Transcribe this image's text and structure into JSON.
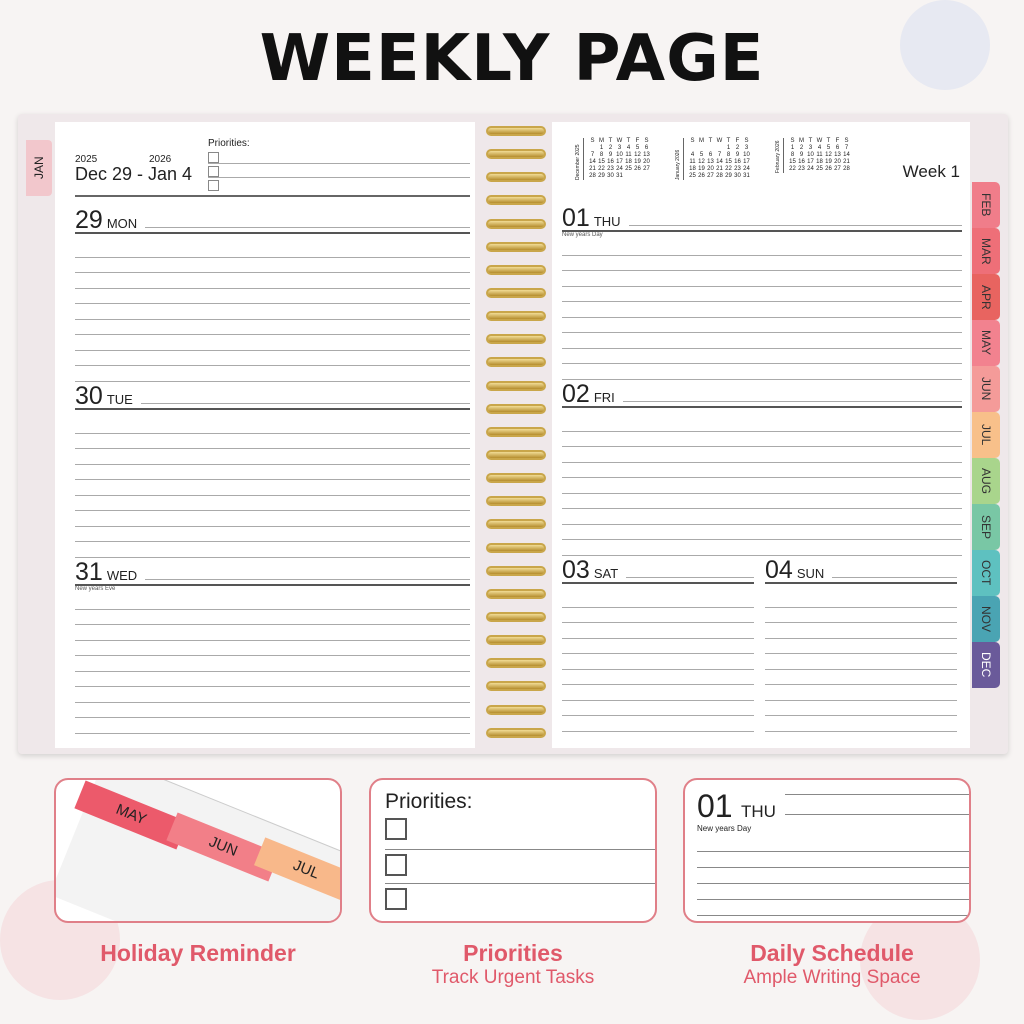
{
  "title": "WEEKLY PAGE",
  "left_page": {
    "tab": "JAN",
    "year_start": "2025",
    "year_end": "2026",
    "range": "Dec 29 - Jan 4",
    "priorities_label": "Priorities:",
    "days": [
      {
        "num": "29",
        "name": "MON",
        "holiday": ""
      },
      {
        "num": "30",
        "name": "TUE",
        "holiday": ""
      },
      {
        "num": "31",
        "name": "WED",
        "holiday": "New years Eve"
      }
    ]
  },
  "right_page": {
    "week": "Week 1",
    "calendars": [
      {
        "month": "December 2025",
        "first_weekday": 1,
        "days": 31
      },
      {
        "month": "January 2026",
        "first_weekday": 4,
        "days": 31
      },
      {
        "month": "February 2026",
        "first_weekday": 0,
        "days": 28
      }
    ],
    "weekday_letters": [
      "S",
      "M",
      "T",
      "W",
      "T",
      "F",
      "S"
    ],
    "days": [
      {
        "num": "01",
        "name": "THU",
        "holiday": "New years Day"
      },
      {
        "num": "02",
        "name": "FRI",
        "holiday": ""
      },
      {
        "num": "03",
        "name": "SAT",
        "holiday": ""
      },
      {
        "num": "04",
        "name": "SUN",
        "holiday": ""
      }
    ]
  },
  "month_tabs": [
    {
      "label": "FEB",
      "color": "#f07d8a"
    },
    {
      "label": "MAR",
      "color": "#ee6f78"
    },
    {
      "label": "APR",
      "color": "#e86460"
    },
    {
      "label": "MAY",
      "color": "#f2828f"
    },
    {
      "label": "JUN",
      "color": "#f49b99"
    },
    {
      "label": "JUL",
      "color": "#f8c08a"
    },
    {
      "label": "AUG",
      "color": "#a9d58c"
    },
    {
      "label": "SEP",
      "color": "#79c7a5"
    },
    {
      "label": "OCT",
      "color": "#5ec1c0"
    },
    {
      "label": "NOV",
      "color": "#4aa4b3"
    },
    {
      "label": "DEC",
      "color": "#6a5a9a"
    }
  ],
  "features": [
    {
      "title": "Holiday Reminder",
      "subtitle": "",
      "tabs": [
        "MAY",
        "JUN",
        "JUL"
      ]
    },
    {
      "title": "Priorities",
      "subtitle": "Track Urgent Tasks",
      "label": "Priorities:"
    },
    {
      "title": "Daily Schedule",
      "subtitle": "Ample Writing Space",
      "num": "01",
      "day": "THU",
      "holiday": "New years Day"
    }
  ],
  "accent": "#e0596a"
}
